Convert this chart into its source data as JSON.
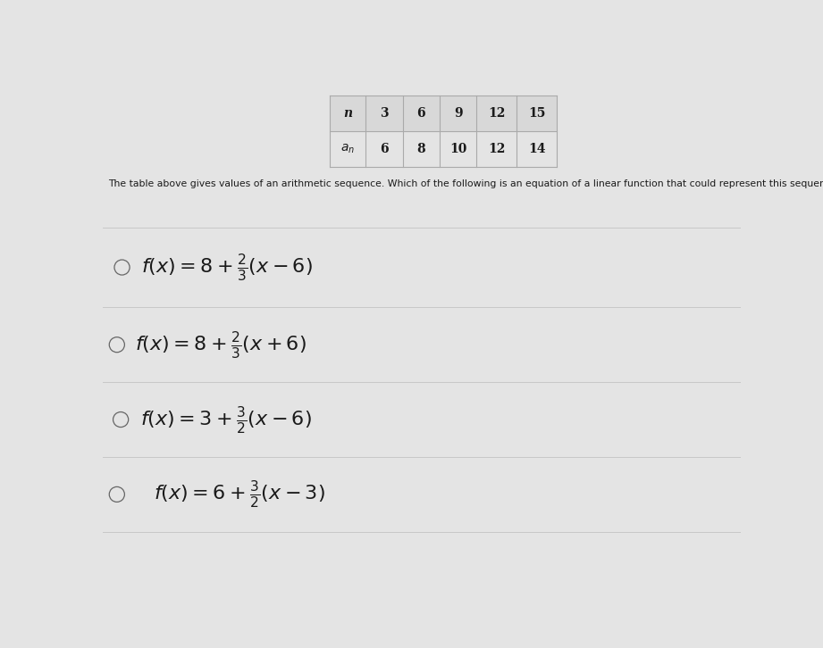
{
  "background_color": "#e4e4e4",
  "table": {
    "headers": [
      "n",
      "3",
      "6",
      "9",
      "12",
      "15"
    ],
    "row2_label": "a_n",
    "row2_values": [
      "6",
      "8",
      "10",
      "12",
      "14"
    ]
  },
  "question_text": "The table above gives values of an arithmetic sequence. Which of the following is an equation of a linear function that could represent this sequence?",
  "option_latex": [
    "$f(x) = 8 + \\frac{2}{3}(x - 6)$",
    "$f(x) = 8 + \\frac{2}{3}(x + 6)$",
    "$f(x) = 3 + \\frac{3}{2}(x - 6)$",
    "$f(x) = 6 + \\frac{3}{2}(x - 3)$"
  ],
  "text_color": "#1a1a1a",
  "line_color": "#c8c8c8",
  "radio_color": "#666666",
  "table_line_color": "#aaaaaa",
  "question_fontsize": 7.8,
  "option_fontsize": 16,
  "table_fontsize": 10
}
